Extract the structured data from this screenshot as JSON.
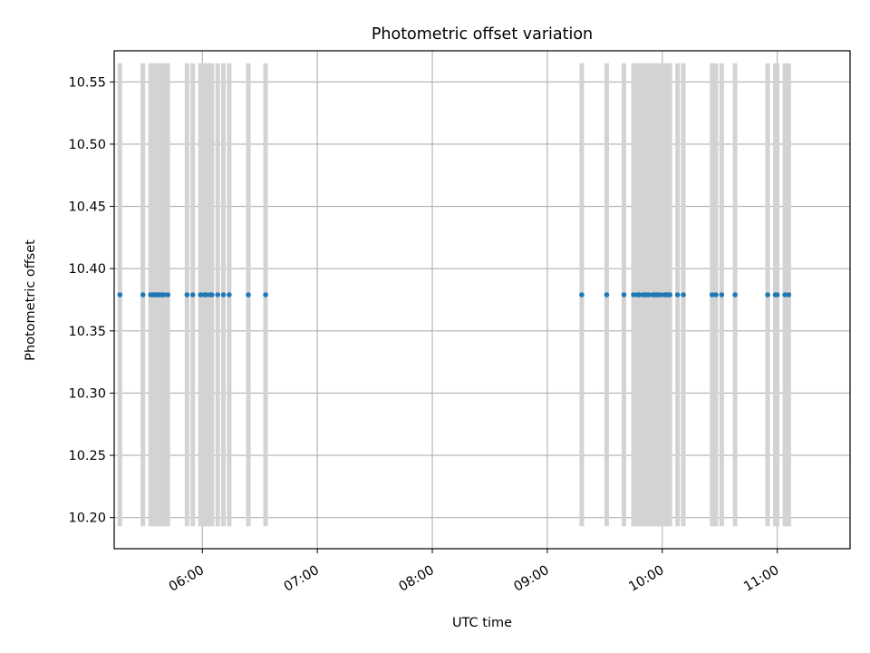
{
  "chart_data": {
    "type": "scatter",
    "title": "Photometric offset variation",
    "xlabel": "UTC time",
    "ylabel": "Photometric offset",
    "x_axis": {
      "type": "time",
      "range": [
        "05:14",
        "11:38"
      ],
      "ticks": [
        "06:00",
        "07:00",
        "08:00",
        "09:00",
        "10:00",
        "11:00"
      ]
    },
    "y_axis": {
      "range": [
        10.175,
        10.575
      ],
      "ticks": [
        "10.20",
        "10.25",
        "10.30",
        "10.35",
        "10.40",
        "10.45",
        "10.50",
        "10.55"
      ]
    },
    "grid": true,
    "colors": {
      "points": "#1f77b4",
      "errorbars": "#d3d3d3",
      "grid": "#b0b0b0"
    },
    "series": [
      {
        "x": [
          "05:17",
          "05:29",
          "05:33",
          "05:34",
          "05:35",
          "05:36",
          "05:37",
          "05:38",
          "05:39",
          "05:40",
          "05:42",
          "05:52",
          "05:55",
          "05:59",
          "06:01",
          "06:02",
          "06:04",
          "06:05",
          "06:08",
          "06:11",
          "06:14",
          "06:24",
          "06:33",
          "09:18",
          "09:31",
          "09:40",
          "09:45",
          "09:47",
          "09:48",
          "09:50",
          "09:51",
          "09:52",
          "09:53",
          "09:55",
          "09:56",
          "09:57",
          "09:58",
          "09:59",
          "10:01",
          "10:02",
          "10:03",
          "10:04",
          "10:08",
          "10:11",
          "10:26",
          "10:28",
          "10:31",
          "10:38",
          "10:55",
          "10:59",
          "11:00",
          "11:04",
          "11:06"
        ],
        "y": [
          10.379,
          10.379,
          10.379,
          10.379,
          10.379,
          10.379,
          10.379,
          10.379,
          10.379,
          10.379,
          10.379,
          10.379,
          10.379,
          10.379,
          10.379,
          10.379,
          10.379,
          10.379,
          10.379,
          10.379,
          10.379,
          10.379,
          10.379,
          10.379,
          10.379,
          10.379,
          10.379,
          10.379,
          10.379,
          10.379,
          10.379,
          10.379,
          10.379,
          10.379,
          10.379,
          10.379,
          10.379,
          10.379,
          10.379,
          10.379,
          10.379,
          10.379,
          10.379,
          10.379,
          10.379,
          10.379,
          10.379,
          10.379,
          10.379,
          10.379,
          10.379,
          10.379,
          10.379
        ],
        "error_low": 10.193,
        "error_high": 10.565
      }
    ]
  }
}
